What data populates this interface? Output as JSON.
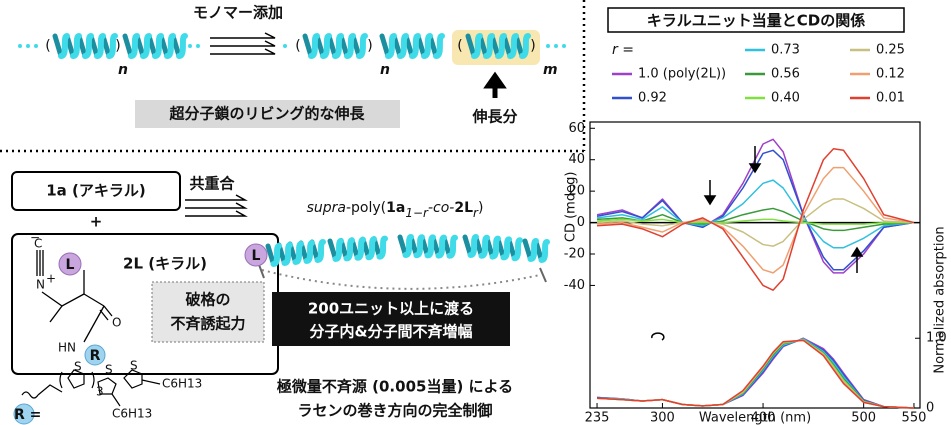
{
  "diagram": {
    "top": {
      "monomer_add": "モノマー添加",
      "n1": "n",
      "n2": "n",
      "m": "m",
      "caption": "超分子鎖のリビング的な伸長",
      "extension": "伸長分"
    },
    "bottom": {
      "achiral": "1a (アキラル)",
      "plus": "+",
      "copolymer": "共重合",
      "chiral": "2L (キラル)",
      "induction": [
        "破格の",
        "不斉誘起力"
      ],
      "product": [
        "supra",
        "-poly(",
        "1a",
        "1−r",
        "-co-",
        "2L",
        "r",
        ")"
      ],
      "L": "L",
      "R": "R",
      "amplification": [
        "200ユニット以上に渡る",
        "分子内&分子間不斉増幅"
      ],
      "control": [
        "極微量不斉源 (0.005当量) による",
        "ラセンの巻き方向の完全制御"
      ],
      "R_eq": "R =",
      "chem": {
        "C": "C",
        "N": "N",
        "minus": "−",
        "plus": "+",
        "O": "O",
        "HN": "HN",
        "S1": "S",
        "S2": "S",
        "S3": "S",
        "n3": "3",
        "hex1": "C6H13",
        "hex2": "C6H13"
      }
    }
  },
  "chart_data": {
    "type": "line",
    "title": "キラルユニット当量とCDの関係",
    "legend_title": "r =",
    "xlabel": "Wavelength (nm)",
    "ylabel": "CD (mdeg)",
    "y2label": "Normalized absorption",
    "x": [
      235,
      260,
      280,
      300,
      320,
      340,
      360,
      380,
      400,
      410,
      420,
      440,
      460,
      470,
      480,
      500,
      520,
      550
    ],
    "xlim": [
      228,
      556
    ],
    "xticks": [
      235,
      300,
      400,
      500,
      550
    ],
    "ylim": [
      -118,
      64
    ],
    "yticks": [
      -40,
      -20,
      0,
      20,
      40,
      60
    ],
    "y2lim": [
      0,
      4.1
    ],
    "y2ticks": [
      0,
      {
        "value": 1,
        "label": "1.0"
      }
    ],
    "series": [
      {
        "name": "1.0 (poly(2L))",
        "color": "#a040c8",
        "values": [
          5,
          8,
          3,
          15,
          0,
          -3,
          5,
          25,
          50,
          53,
          45,
          5,
          -25,
          -32,
          -32,
          -20,
          -3,
          0
        ],
        "absorption": [
          0.15,
          0.13,
          0.1,
          0.12,
          0.05,
          0.03,
          0.05,
          0.18,
          0.5,
          0.7,
          0.88,
          1.0,
          0.85,
          0.7,
          0.5,
          0.12,
          0.02,
          0
        ]
      },
      {
        "name": "0.92",
        "color": "#3050d0",
        "values": [
          4,
          7,
          3,
          14,
          0,
          -3,
          4,
          22,
          44,
          46,
          40,
          5,
          -22,
          -30,
          -30,
          -18,
          -3,
          0
        ],
        "absorption": [
          0.15,
          0.13,
          0.1,
          0.12,
          0.05,
          0.03,
          0.05,
          0.19,
          0.52,
          0.72,
          0.89,
          0.99,
          0.83,
          0.68,
          0.48,
          0.11,
          0.02,
          0
        ]
      },
      {
        "name": "0.73",
        "color": "#30c0e0",
        "values": [
          3,
          5,
          2,
          10,
          0,
          -2,
          3,
          12,
          25,
          27,
          22,
          3,
          -12,
          -16,
          -16,
          -10,
          -2,
          0
        ],
        "absorption": [
          0.14,
          0.13,
          0.1,
          0.12,
          0.05,
          0.03,
          0.05,
          0.2,
          0.54,
          0.74,
          0.9,
          0.99,
          0.81,
          0.65,
          0.45,
          0.1,
          0.02,
          0
        ]
      },
      {
        "name": "0.56",
        "color": "#3a9a3a",
        "values": [
          2,
          3,
          1,
          5,
          0,
          -1,
          1,
          5,
          8,
          9,
          7,
          1,
          -4,
          -5,
          -5,
          -3,
          -1,
          0
        ],
        "absorption": [
          0.14,
          0.12,
          0.1,
          0.12,
          0.05,
          0.03,
          0.05,
          0.21,
          0.56,
          0.76,
          0.92,
          0.98,
          0.79,
          0.62,
          0.42,
          0.1,
          0.02,
          0
        ]
      },
      {
        "name": "0.40",
        "color": "#80e040",
        "values": [
          1,
          2,
          1,
          2,
          0,
          0,
          0,
          1,
          2,
          2,
          1,
          0,
          -1,
          -1,
          -1,
          -1,
          0,
          0
        ],
        "absorption": [
          0.14,
          0.12,
          0.1,
          0.12,
          0.05,
          0.03,
          0.05,
          0.22,
          0.58,
          0.78,
          0.93,
          0.98,
          0.78,
          0.6,
          0.4,
          0.09,
          0.02,
          0
        ]
      },
      {
        "name": "0.25",
        "color": "#c8c080",
        "values": [
          0,
          1,
          -1,
          -2,
          0,
          1,
          -1,
          -6,
          -14,
          -15,
          -12,
          2,
          12,
          15,
          15,
          9,
          1,
          0
        ],
        "absorption": [
          0.14,
          0.12,
          0.1,
          0.12,
          0.05,
          0.03,
          0.05,
          0.23,
          0.58,
          0.79,
          0.94,
          0.97,
          0.77,
          0.58,
          0.38,
          0.09,
          0.02,
          0
        ]
      },
      {
        "name": "0.12",
        "color": "#f0a070",
        "values": [
          -1,
          0,
          -3,
          -6,
          0,
          2,
          -3,
          -15,
          -30,
          -32,
          -27,
          5,
          28,
          35,
          35,
          20,
          3,
          0
        ],
        "absorption": [
          0.14,
          0.12,
          0.1,
          0.12,
          0.05,
          0.03,
          0.05,
          0.24,
          0.59,
          0.8,
          0.95,
          0.97,
          0.76,
          0.56,
          0.36,
          0.08,
          0.02,
          0
        ]
      },
      {
        "name": "0.01",
        "color": "#e04030",
        "values": [
          -2,
          -1,
          -4,
          -9,
          -1,
          3,
          -4,
          -22,
          -40,
          -43,
          -36,
          8,
          40,
          47,
          46,
          28,
          5,
          0
        ],
        "absorption": [
          0.14,
          0.12,
          0.1,
          0.12,
          0.05,
          0.03,
          0.05,
          0.25,
          0.6,
          0.8,
          0.95,
          0.97,
          0.75,
          0.55,
          0.35,
          0.08,
          0.02,
          0
        ]
      }
    ]
  }
}
